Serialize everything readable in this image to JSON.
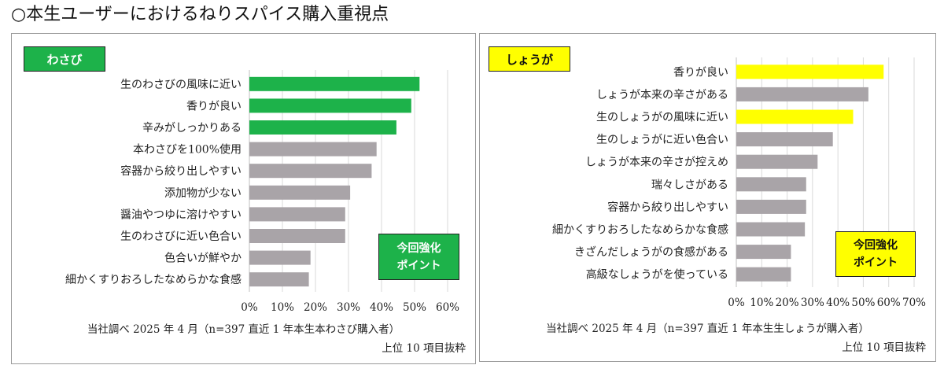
{
  "page": {
    "title": "○本生ユーザーにおけるねりスパイス購入重視点"
  },
  "colors": {
    "wasabi_highlight": "#1db24a",
    "ginger_highlight": "#ffff00",
    "other_bar": "#a9a4a8",
    "grid": "#d9d9d9"
  },
  "chart_data": [
    {
      "type": "bar",
      "orientation": "horizontal",
      "title": "わさび",
      "categories": [
        "生のわさびの風味に近い",
        "香りが良い",
        "辛みがしっかりある",
        "本わさびを100%使用",
        "容器から絞り出しやすい",
        "添加物が少ない",
        "醤油やつゆに溶けやすい",
        "生のわさびに近い色合い",
        "色合いが鮮やか",
        "細かくすりおろしたなめらかな食感"
      ],
      "values": [
        51.5,
        49,
        44.5,
        38.5,
        37,
        30.5,
        29,
        29,
        18.5,
        18
      ],
      "highlighted": [
        true,
        true,
        true,
        false,
        false,
        false,
        false,
        false,
        false,
        false
      ],
      "xlim": [
        0,
        60
      ],
      "xticks": [
        "0%",
        "10%",
        "20%",
        "30%",
        "40%",
        "50%",
        "60%"
      ],
      "annotation": [
        "今回強化",
        "ポイント"
      ],
      "source_line1": "当社調べ 2025 年 4 月（n=397 直近 1 年本生本わさび購入者）",
      "source_line2": "上位 10 項目抜粋"
    },
    {
      "type": "bar",
      "orientation": "horizontal",
      "title": "しょうが",
      "categories": [
        "香りが良い",
        "しょうが本来の辛さがある",
        "生のしょうがの風味に近い",
        "生のしょうがに近い色合い",
        "しょうが本来の辛さが控えめ",
        "瑞々しさがある",
        "容器から絞り出しやすい",
        "細かくすりおろしたなめらかな食感",
        "きざんだしょうがの食感がある",
        "高級なしょうがを使っている"
      ],
      "values": [
        58,
        52,
        46,
        38,
        32,
        27.5,
        27.5,
        27,
        21.5,
        21.5
      ],
      "highlighted": [
        true,
        false,
        true,
        false,
        false,
        false,
        false,
        false,
        false,
        false
      ],
      "xlim": [
        0,
        70
      ],
      "xticks": [
        "0%",
        "10%",
        "20%",
        "30%",
        "40%",
        "50%",
        "60%",
        "70%"
      ],
      "annotation": [
        "今回強化",
        "ポイント"
      ],
      "source_line1": "当社調べ 2025 年 4 月（n=397 直近 1 年本生生しょうが購入者）",
      "source_line2": "上位 10 項目抜粋"
    }
  ]
}
